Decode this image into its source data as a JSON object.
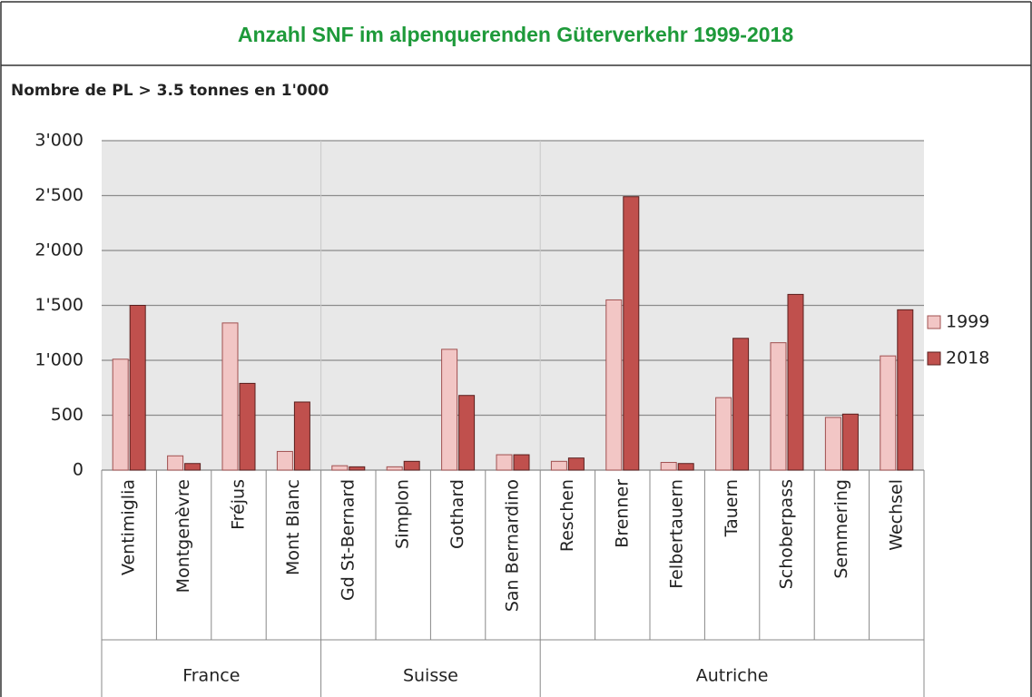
{
  "chart_data": {
    "type": "bar",
    "title": "Anzahl SNF im alpenquerenden Güterverkehr 1999-2018",
    "subtitle": "Nombre de PL > 3.5 tonnes en 1'000",
    "categories": [
      "Ventimiglia",
      "Montgenèvre",
      "Fréjus",
      "Mont Blanc",
      "Gd St-Bernard",
      "Simplon",
      "Gothard",
      "San Bernardino",
      "Reschen",
      "Brenner",
      "Felbertauern",
      "Tauern",
      "Schoberpass",
      "Semmering",
      "Wechsel"
    ],
    "category_groups": [
      "France",
      "France",
      "France",
      "France",
      "Suisse",
      "Suisse",
      "Suisse",
      "Suisse",
      "Autriche",
      "Autriche",
      "Autriche",
      "Autriche",
      "Autriche",
      "Autriche",
      "Autriche"
    ],
    "series": [
      {
        "name": "1999",
        "color": "#f2c6c5",
        "values": [
          1010,
          130,
          1340,
          170,
          40,
          30,
          1100,
          140,
          80,
          1550,
          70,
          660,
          1160,
          480,
          1040
        ]
      },
      {
        "name": "2018",
        "color": "#c0504d",
        "values": [
          1500,
          60,
          790,
          620,
          30,
          80,
          680,
          140,
          110,
          2490,
          60,
          1200,
          1600,
          510,
          1460
        ]
      }
    ],
    "ylim": [
      0,
      3000
    ],
    "yticks": [
      0,
      500,
      {
        "value": 1000,
        "label": "1'000"
      },
      {
        "value": 1500,
        "label": "1'500"
      },
      {
        "value": 2000,
        "label": "2'000"
      },
      {
        "value": 2500,
        "label": "2'500"
      },
      {
        "value": 3000,
        "label": "3'000"
      }
    ],
    "grid": true,
    "legend": "right"
  }
}
